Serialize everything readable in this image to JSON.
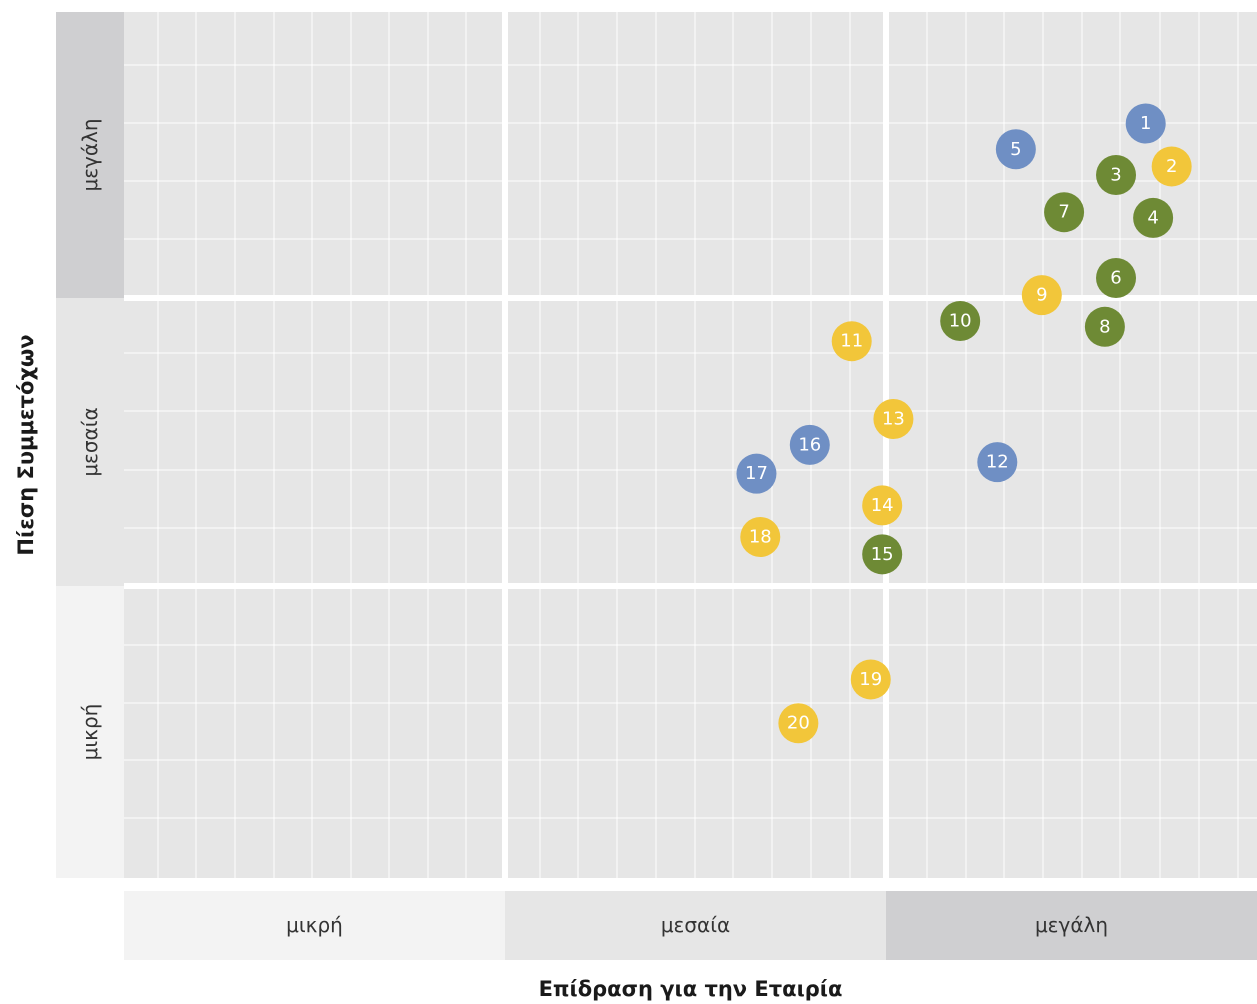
{
  "chart_data": {
    "type": "scatter",
    "title": "",
    "xlabel": "Επίδραση για την Εταιρία",
    "ylabel": "Πίεση Συμμετόχων",
    "xlim": [
      0,
      3
    ],
    "ylim": [
      0,
      3
    ],
    "grid": true,
    "x_bands": [
      "μικρή",
      "μεσαία",
      "μεγάλη"
    ],
    "y_bands": [
      "μικρή",
      "μεσαία",
      "μεγάλη"
    ],
    "colors": {
      "blue": "#6f8fc4",
      "yellow": "#f2c63a",
      "green": "#6e8a35",
      "plot_background": "#e6e6e6",
      "band_light": "#f3f3f3",
      "band_mid": "#e6e6e6",
      "band_dark": "#cfcfd1"
    },
    "points": [
      {
        "label": "1",
        "color": "blue",
        "x": 2.7,
        "y": 2.61
      },
      {
        "label": "2",
        "color": "yellow",
        "x": 2.77,
        "y": 2.46
      },
      {
        "label": "3",
        "color": "green",
        "x": 2.62,
        "y": 2.43
      },
      {
        "label": "4",
        "color": "green",
        "x": 2.72,
        "y": 2.28
      },
      {
        "label": "5",
        "color": "blue",
        "x": 2.35,
        "y": 2.52
      },
      {
        "label": "6",
        "color": "green",
        "x": 2.62,
        "y": 2.07
      },
      {
        "label": "7",
        "color": "green",
        "x": 2.48,
        "y": 2.3
      },
      {
        "label": "8",
        "color": "green",
        "x": 2.59,
        "y": 1.9
      },
      {
        "label": "9",
        "color": "yellow",
        "x": 2.42,
        "y": 2.01
      },
      {
        "label": "10",
        "color": "green",
        "x": 2.2,
        "y": 1.92
      },
      {
        "label": "11",
        "color": "yellow",
        "x": 1.91,
        "y": 1.85
      },
      {
        "label": "12",
        "color": "blue",
        "x": 2.3,
        "y": 1.43
      },
      {
        "label": "13",
        "color": "yellow",
        "x": 2.02,
        "y": 1.58
      },
      {
        "label": "14",
        "color": "yellow",
        "x": 1.99,
        "y": 1.28
      },
      {
        "label": "15",
        "color": "green",
        "x": 1.99,
        "y": 1.11
      },
      {
        "label": "16",
        "color": "blue",
        "x": 1.8,
        "y": 1.49
      },
      {
        "label": "17",
        "color": "blue",
        "x": 1.66,
        "y": 1.39
      },
      {
        "label": "18",
        "color": "yellow",
        "x": 1.67,
        "y": 1.17
      },
      {
        "label": "19",
        "color": "yellow",
        "x": 1.96,
        "y": 0.68
      },
      {
        "label": "20",
        "color": "yellow",
        "x": 1.77,
        "y": 0.53
      }
    ]
  }
}
